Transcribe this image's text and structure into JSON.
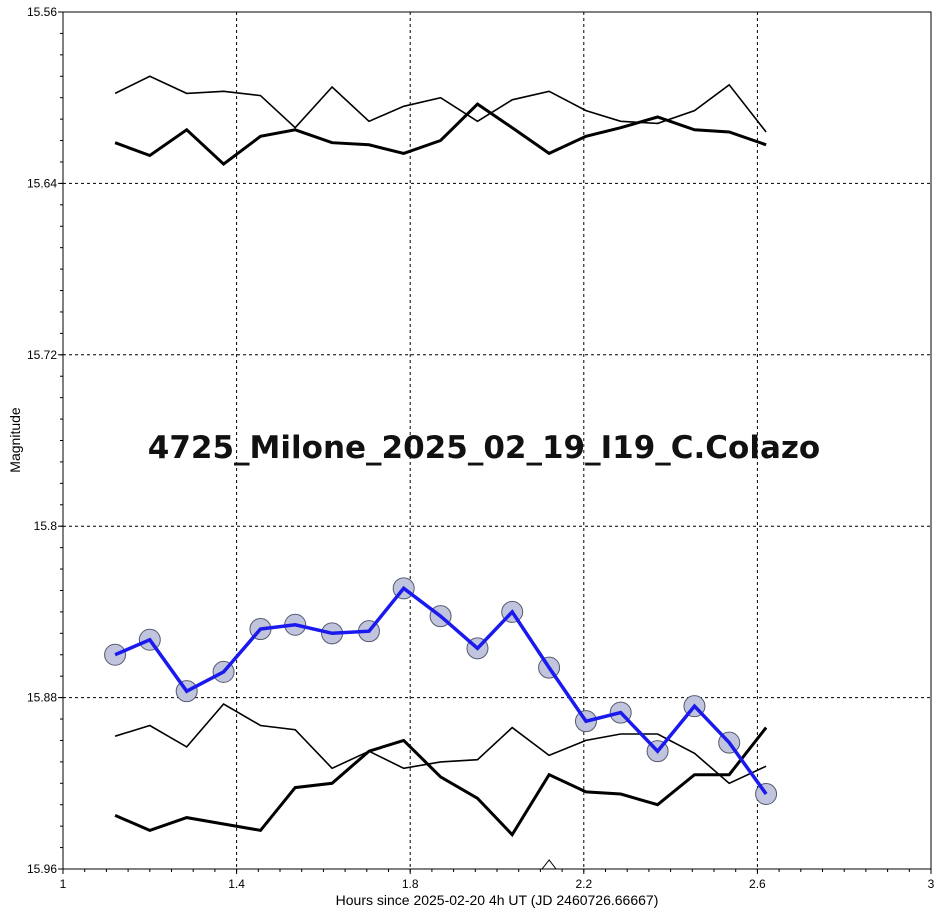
{
  "chart_data": {
    "type": "line",
    "title": "4725_Milone_2025_02_19_I19_C.Colazo",
    "xlabel": "Hours since 2025-02-20 4h UT (JD 2460726.66667)",
    "ylabel": "Magnitude",
    "xlim": [
      1,
      3
    ],
    "ylim": [
      15.56,
      15.96
    ],
    "y_inverted": true,
    "x_ticks": [
      "1",
      "1.4",
      "1.8",
      "2.2",
      "2.6",
      "3"
    ],
    "y_ticks": [
      "15.56",
      "15.64",
      "15.72",
      "15.8",
      "15.88",
      "15.96"
    ],
    "grid": true,
    "x": [
      1.12,
      1.2,
      1.285,
      1.37,
      1.455,
      1.535,
      1.62,
      1.705,
      1.785,
      1.87,
      1.955,
      2.035,
      2.12,
      2.205,
      2.285,
      2.37,
      2.455,
      2.535,
      2.62
    ],
    "series": [
      {
        "role": "comparison-thin-top",
        "color": "#000000",
        "values": [
          15.598,
          15.59,
          15.598,
          15.597,
          15.599,
          15.614,
          15.595,
          15.611,
          15.604,
          15.6,
          15.611,
          15.601,
          15.597,
          15.606,
          15.611,
          15.612,
          15.606,
          15.594,
          15.616
        ]
      },
      {
        "role": "comparison-thick-top",
        "color": "#000000",
        "values": [
          15.621,
          15.627,
          15.615,
          15.631,
          15.618,
          15.615,
          15.621,
          15.622,
          15.626,
          15.62,
          15.603,
          15.614,
          15.626,
          15.618,
          15.614,
          15.609,
          15.615,
          15.616,
          15.622
        ]
      },
      {
        "role": "comparison-thin-bottom",
        "color": "#000000",
        "values": [
          15.898,
          15.893,
          15.903,
          15.883,
          15.893,
          15.895,
          15.913,
          15.905,
          15.913,
          15.91,
          15.909,
          15.894,
          15.907,
          15.9,
          15.897,
          15.897,
          15.906,
          15.92,
          15.912
        ]
      },
      {
        "role": "comparison-thick-bottom",
        "color": "#000000",
        "values": [
          15.935,
          15.942,
          15.936,
          15.939,
          15.942,
          15.922,
          15.92,
          15.905,
          15.9,
          15.917,
          15.927,
          15.944,
          15.916,
          15.924,
          15.925,
          15.93,
          15.916,
          15.916,
          15.894
        ]
      },
      {
        "role": "target",
        "color": "#1a1aee",
        "marker_fill": "#c0c4dc",
        "values": [
          15.86,
          15.853,
          15.877,
          15.868,
          15.848,
          15.846,
          15.85,
          15.849,
          15.829,
          15.842,
          15.857,
          15.84,
          15.866,
          15.891,
          15.887,
          15.905,
          15.884,
          15.901,
          15.925
        ]
      }
    ],
    "annotations": [
      {
        "type": "triangle-marker",
        "x": 2.12,
        "position": "bottom-axis"
      }
    ]
  }
}
